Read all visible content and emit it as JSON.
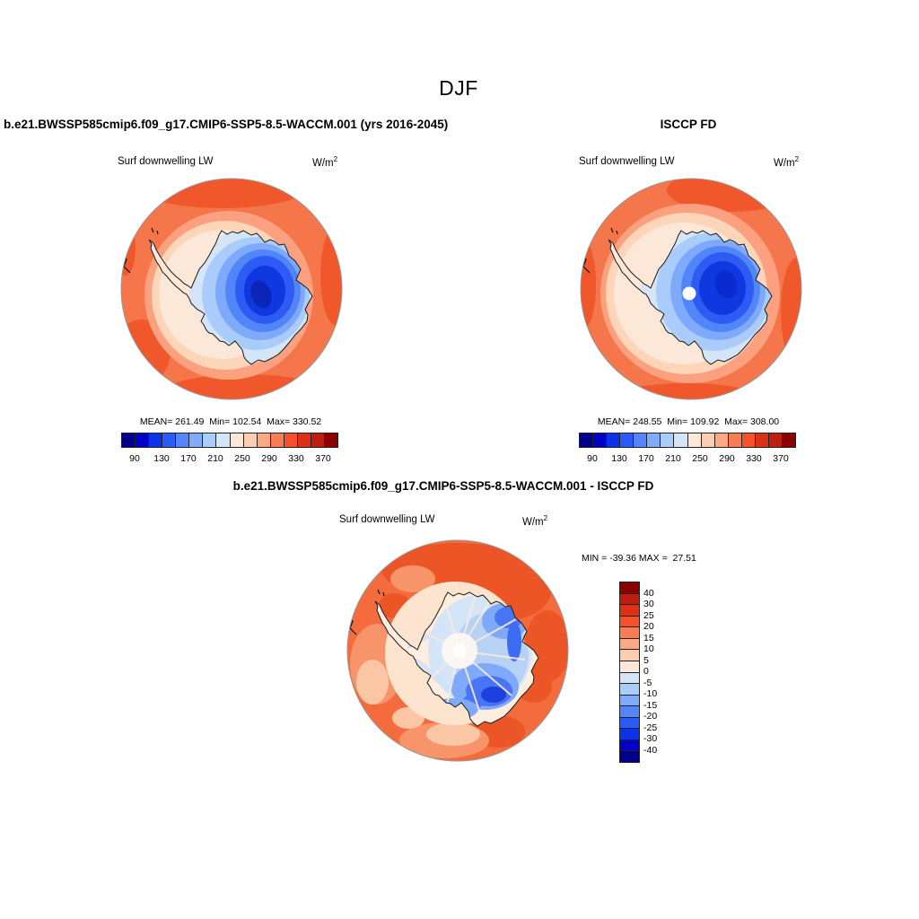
{
  "title": "DJF",
  "panels": {
    "left": {
      "header": "b.e21.BWSSP585cmip6.f09_g17.CMIP6-SSP5-8.5-WACCM.001 (yrs 2016-2045)",
      "field_label": "Surf downwelling LW",
      "units": "W/m",
      "units_sup": "2",
      "stats": "MEAN= 261.49  Min= 102.54  Max= 330.52"
    },
    "right": {
      "header": "ISCCP FD",
      "field_label": "Surf downwelling LW",
      "units": "W/m",
      "units_sup": "2",
      "stats": "MEAN= 248.55  Min= 109.92  Max= 308.00"
    },
    "diff": {
      "header": "b.e21.BWSSP585cmip6.f09_g17.CMIP6-SSP5-8.5-WACCM.001 - ISCCP FD",
      "field_label": "Surf downwelling LW",
      "units": "W/m",
      "units_sup": "2",
      "stats": "MIN = -39.36 MAX =  27.51"
    }
  },
  "colorbar": {
    "ticks": [
      "90",
      "130",
      "170",
      "210",
      "250",
      "290",
      "330",
      "370"
    ],
    "palette": [
      "#00008B",
      "#0000C8",
      "#0A32E8",
      "#2A5CFC",
      "#5585FC",
      "#80AAFC",
      "#AACCFA",
      "#D5E5F8",
      "#FCE8D8",
      "#FCCDB0",
      "#FBA883",
      "#FA7D52",
      "#F7512A",
      "#DE3014",
      "#BE1E0E",
      "#8B0000"
    ]
  },
  "diff_colorbar": {
    "labels": [
      "40",
      "30",
      "25",
      "20",
      "15",
      "10",
      "5",
      "0",
      "-5",
      "-10",
      "-15",
      "-20",
      "-25",
      "-30",
      "-40"
    ]
  },
  "chart_data": [
    {
      "type": "heatmap",
      "subtype": "filled-contour-map",
      "projection": "south polar stereographic",
      "season": "DJF",
      "dataset": "b.e21.BWSSP585cmip6.f09_g17.CMIP6-SSP5-8.5-WACCM.001 (yrs 2016-2045)",
      "title": "Surf downwelling LW",
      "units": "W/m2",
      "mean": 261.49,
      "min": 102.54,
      "max": 330.52,
      "contour_levels": [
        90,
        110,
        130,
        150,
        170,
        190,
        210,
        230,
        250,
        270,
        290,
        310,
        330,
        350,
        370
      ],
      "legend_ticks": [
        90,
        130,
        170,
        210,
        250,
        290,
        330,
        370
      ],
      "palette": [
        "#00008B",
        "#0000C8",
        "#0A32E8",
        "#2A5CFC",
        "#5585FC",
        "#80AAFC",
        "#AACCFA",
        "#D5E5F8",
        "#FCE8D8",
        "#FCCDB0",
        "#FBA883",
        "#FA7D52",
        "#F7512A",
        "#DE3014",
        "#BE1E0E",
        "#8B0000"
      ],
      "legend_position": "bottom"
    },
    {
      "type": "heatmap",
      "subtype": "filled-contour-map",
      "projection": "south polar stereographic",
      "season": "DJF",
      "dataset": "ISCCP FD",
      "title": "Surf downwelling LW",
      "units": "W/m2",
      "mean": 248.55,
      "min": 109.92,
      "max": 308.0,
      "contour_levels": [
        90,
        110,
        130,
        150,
        170,
        190,
        210,
        230,
        250,
        270,
        290,
        310,
        330,
        350,
        370
      ],
      "legend_ticks": [
        90,
        130,
        170,
        210,
        250,
        290,
        330,
        370
      ],
      "palette": [
        "#00008B",
        "#0000C8",
        "#0A32E8",
        "#2A5CFC",
        "#5585FC",
        "#80AAFC",
        "#AACCFA",
        "#D5E5F8",
        "#FCE8D8",
        "#FCCDB0",
        "#FBA883",
        "#FA7D52",
        "#F7512A",
        "#DE3014",
        "#BE1E0E",
        "#8B0000"
      ],
      "legend_position": "bottom"
    },
    {
      "type": "heatmap",
      "subtype": "filled-contour-difference-map",
      "projection": "south polar stereographic",
      "season": "DJF",
      "dataset": "b.e21.BWSSP585cmip6.f09_g17.CMIP6-SSP5-8.5-WACCM.001 - ISCCP FD",
      "title": "Surf downwelling LW",
      "units": "W/m2",
      "min": -39.36,
      "max": 27.51,
      "contour_levels": [
        -40,
        -30,
        -25,
        -20,
        -15,
        -10,
        -5,
        0,
        5,
        10,
        15,
        20,
        25,
        30,
        40
      ],
      "palette": [
        "#00008B",
        "#0000C8",
        "#0A32E8",
        "#2A5CFC",
        "#5585FC",
        "#80AAFC",
        "#AACCFA",
        "#D5E5F8",
        "#FCE8D8",
        "#FCCDB0",
        "#FBA883",
        "#FA7D52",
        "#F7512A",
        "#DE3014",
        "#BE1E0E",
        "#8B0000"
      ],
      "legend_position": "right-vertical"
    }
  ]
}
